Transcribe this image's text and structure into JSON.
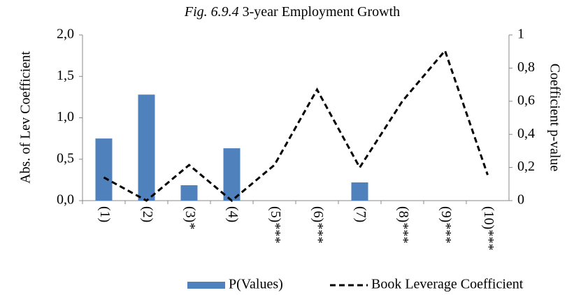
{
  "chart_data": {
    "type": "bar_line",
    "title": {
      "label": "Fig. 6.9.4",
      "text": "3-year Employment Growth"
    },
    "ylabel": "Abs. of Lev Coefficient",
    "y2label": "Coefficient p-value",
    "categories": [
      "(1)",
      "(2)",
      "(3)*",
      "(4)",
      "(5)***",
      "(6)***",
      "(7)",
      "(8)***",
      "(9)***",
      "(10)***"
    ],
    "series": [
      {
        "name": "P(Values)",
        "type": "bar",
        "axis": "y2",
        "color": "#4f81bd",
        "values": [
          0.375,
          0.64,
          0.093,
          0.316,
          0,
          0,
          0.11,
          0,
          0,
          0
        ]
      },
      {
        "name": "Book Leverage Coefficient",
        "type": "line",
        "axis": "y",
        "color": "#000000",
        "values": [
          0.28,
          0,
          0.43,
          0,
          0.43,
          1.34,
          0.4,
          1.2,
          1.81,
          0.31
        ]
      }
    ],
    "ylim": [
      0,
      2
    ],
    "yticks": [
      {
        "value": 0,
        "label": "0,0"
      },
      {
        "value": 0.5,
        "label": "0,5"
      },
      {
        "value": 1,
        "label": "1,0"
      },
      {
        "value": 1.5,
        "label": "1,5"
      },
      {
        "value": 2,
        "label": "2,0"
      }
    ],
    "y2lim": [
      0,
      1
    ],
    "y2ticks": [
      0,
      {
        "value": 0.2,
        "label": "0,2"
      },
      {
        "value": 0.4,
        "label": "0,4"
      },
      {
        "value": 0.6,
        "label": "0,6"
      },
      {
        "value": 0.8,
        "label": "0,8"
      },
      1
    ],
    "grid": false,
    "legend": "bottom"
  }
}
